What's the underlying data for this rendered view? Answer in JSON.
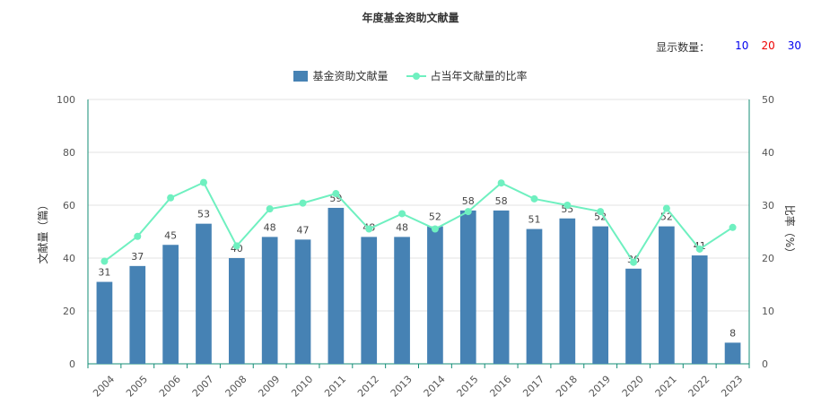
{
  "display_count": {
    "label": "显示数量：",
    "options": [
      {
        "label": "10",
        "color": "#0000ee"
      },
      {
        "label": "20",
        "color": "#ee0000"
      },
      {
        "label": "30",
        "color": "#0000ee"
      }
    ]
  },
  "chart_data": {
    "type": "bar",
    "title": "年度基金资助文献量",
    "categories": [
      "2004",
      "2005",
      "2006",
      "2007",
      "2008",
      "2009",
      "2010",
      "2011",
      "2012",
      "2013",
      "2014",
      "2015",
      "2016",
      "2017",
      "2018",
      "2019",
      "2020",
      "2021",
      "2022",
      "2023"
    ],
    "series": [
      {
        "name": "基金资助文献量",
        "type": "bar",
        "axis": "left",
        "color": "#4682b4",
        "values": [
          31,
          37,
          45,
          53,
          40,
          48,
          47,
          59,
          48,
          48,
          52,
          58,
          58,
          51,
          55,
          52,
          36,
          52,
          41,
          8
        ]
      },
      {
        "name": "占当年文献量的比率",
        "type": "line",
        "axis": "right",
        "color": "#6ff0c0",
        "values": [
          19.4,
          24.1,
          31.4,
          34.3,
          22.3,
          29.3,
          30.4,
          32.2,
          25.5,
          28.4,
          25.5,
          28.8,
          34.2,
          31.2,
          30.0,
          28.8,
          19.2,
          29.4,
          21.7,
          25.8
        ]
      }
    ],
    "ylabel": "文献量（篇）",
    "ylabel_right": "比率（%）",
    "ylim": [
      0,
      100
    ],
    "ylim_right": [
      0,
      50
    ],
    "yticks": [
      "0",
      "20",
      "40",
      "60",
      "80",
      "100"
    ],
    "yticks_right": [
      "0",
      "10",
      "20",
      "30",
      "40",
      "50"
    ],
    "grid": true,
    "legend_position": "top-center"
  }
}
